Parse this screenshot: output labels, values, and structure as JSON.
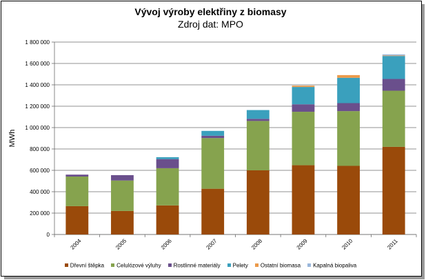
{
  "chart_data": {
    "type": "bar",
    "stacked": true,
    "title": "Vývoj výroby elektřiny z biomasy",
    "subtitle": "Zdroj dat: MPO",
    "xlabel": "",
    "ylabel": "MWh",
    "ylim": [
      0,
      1800000
    ],
    "yticks": [
      0,
      200000,
      400000,
      600000,
      800000,
      1000000,
      1200000,
      1400000,
      1600000,
      1800000
    ],
    "ytick_labels": [
      "0",
      "200 000",
      "400 000",
      "600 000",
      "800 000",
      "1 000 000",
      "1 200 000",
      "1 400 000",
      "1 600 000",
      "1 800 000"
    ],
    "grid": true,
    "legend_position": "bottom",
    "categories": [
      "2004",
      "2005",
      "2006",
      "2007",
      "2008",
      "2009",
      "2010",
      "2011"
    ],
    "series": [
      {
        "name": "Dřevní štěpka",
        "color": "#9a4a0a",
        "values": [
          265000,
          220000,
          272000,
          428000,
          600000,
          648000,
          642000,
          820000
        ]
      },
      {
        "name": "Celulózové výluhy",
        "color": "#86a34e",
        "values": [
          277000,
          285000,
          348000,
          474000,
          462000,
          500000,
          512000,
          525000
        ]
      },
      {
        "name": "Rostlinné materiály",
        "color": "#6a4f8c",
        "values": [
          18000,
          50000,
          85000,
          22000,
          20000,
          70000,
          75000,
          110000
        ]
      },
      {
        "name": "Pelety",
        "color": "#3aa0bd",
        "values": [
          0,
          0,
          18000,
          45000,
          82000,
          162000,
          237000,
          215000
        ]
      },
      {
        "name": "Ostatní biomasa",
        "color": "#ec9a4a",
        "values": [
          0,
          0,
          0,
          0,
          0,
          12000,
          25000,
          5000
        ]
      },
      {
        "name": "Kapalná biopaliva",
        "color": "#9ab7db",
        "values": [
          0,
          0,
          0,
          0,
          0,
          0,
          0,
          10000
        ]
      }
    ]
  }
}
